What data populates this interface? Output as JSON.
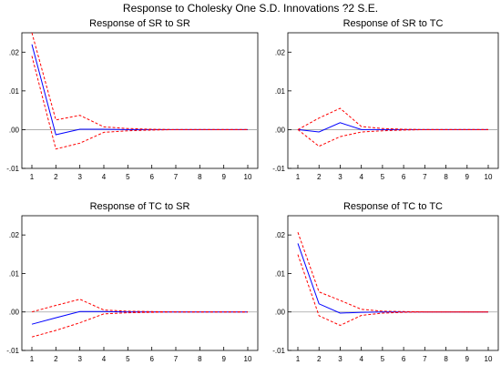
{
  "title": "Response to Cholesky One S.D. Innovations ?2 S.E.",
  "colors": {
    "response": "#0000ff",
    "band": "#ff0000",
    "zero": "#a0a0a0",
    "axis": "#000000"
  },
  "chart_data": [
    {
      "type": "line",
      "title": "Response of SR to SR",
      "x": [
        1,
        2,
        3,
        4,
        5,
        6,
        7,
        8,
        9,
        10
      ],
      "ylim": [
        -0.01,
        0.025
      ],
      "yticks": [
        ".02",
        ".01",
        ".00",
        "-.01"
      ],
      "ytick_values": [
        0.02,
        0.01,
        0.0,
        -0.01
      ],
      "series": [
        {
          "role": "response",
          "values": [
            0.022,
            -0.0013,
            0.0001,
            0.0001,
            0.0,
            0.0,
            0.0,
            0.0,
            0.0,
            0.0
          ]
        },
        {
          "role": "upper",
          "values": [
            0.025,
            0.0025,
            0.0037,
            0.0007,
            0.0003,
            0.0001,
            0.0,
            0.0,
            0.0,
            0.0
          ]
        },
        {
          "role": "lower",
          "values": [
            0.019,
            -0.005,
            -0.0035,
            -0.0007,
            -0.0003,
            -0.0001,
            0.0,
            0.0,
            0.0,
            0.0
          ]
        }
      ]
    },
    {
      "type": "line",
      "title": "Response of SR to TC",
      "x": [
        1,
        2,
        3,
        4,
        5,
        6,
        7,
        8,
        9,
        10
      ],
      "ylim": [
        -0.01,
        0.025
      ],
      "yticks": [
        ".02",
        ".01",
        ".00",
        "-.01"
      ],
      "ytick_values": [
        0.02,
        0.01,
        0.0,
        -0.01
      ],
      "series": [
        {
          "role": "response",
          "values": [
            0.0,
            -0.0006,
            0.0018,
            0.0,
            0.0,
            0.0,
            0.0,
            0.0,
            0.0,
            0.0
          ]
        },
        {
          "role": "upper",
          "values": [
            0.0,
            0.003,
            0.0055,
            0.0008,
            0.0003,
            0.0001,
            0.0,
            0.0,
            0.0,
            0.0
          ]
        },
        {
          "role": "lower",
          "values": [
            0.0,
            -0.0043,
            -0.0018,
            -0.0006,
            -0.0003,
            -0.0001,
            0.0,
            0.0,
            0.0,
            0.0
          ]
        }
      ]
    },
    {
      "type": "line",
      "title": "Response of TC to SR",
      "x": [
        1,
        2,
        3,
        4,
        5,
        6,
        7,
        8,
        9,
        10
      ],
      "ylim": [
        -0.01,
        0.025
      ],
      "yticks": [
        ".02",
        ".01",
        ".00",
        "-.01"
      ],
      "ytick_values": [
        0.02,
        0.01,
        0.0,
        -0.01
      ],
      "series": [
        {
          "role": "response",
          "values": [
            -0.0032,
            -0.0015,
            0.0001,
            0.0001,
            0.0,
            0.0,
            0.0,
            0.0,
            0.0,
            0.0
          ]
        },
        {
          "role": "upper",
          "values": [
            0.0,
            0.0017,
            0.0033,
            0.0005,
            0.0002,
            0.0001,
            0.0,
            0.0,
            0.0,
            0.0
          ]
        },
        {
          "role": "lower",
          "values": [
            -0.0065,
            -0.0048,
            -0.0028,
            -0.0005,
            -0.0002,
            -0.0001,
            0.0,
            0.0,
            0.0,
            0.0
          ]
        }
      ]
    },
    {
      "type": "line",
      "title": "Response of TC to TC",
      "x": [
        1,
        2,
        3,
        4,
        5,
        6,
        7,
        8,
        9,
        10
      ],
      "ylim": [
        -0.01,
        0.025
      ],
      "yticks": [
        ".02",
        ".01",
        ".00",
        "-.01"
      ],
      "ytick_values": [
        0.02,
        0.01,
        0.0,
        -0.01
      ],
      "series": [
        {
          "role": "response",
          "values": [
            0.0178,
            0.0021,
            -0.0003,
            -0.0001,
            0.0,
            0.0,
            0.0,
            0.0,
            0.0,
            0.0
          ]
        },
        {
          "role": "upper",
          "values": [
            0.0207,
            0.0052,
            0.003,
            0.0007,
            0.0002,
            0.0001,
            0.0,
            0.0,
            0.0,
            0.0
          ]
        },
        {
          "role": "lower",
          "values": [
            0.0149,
            -0.001,
            -0.0035,
            -0.0009,
            -0.0003,
            -0.0001,
            0.0,
            0.0,
            0.0,
            0.0
          ]
        }
      ]
    }
  ]
}
